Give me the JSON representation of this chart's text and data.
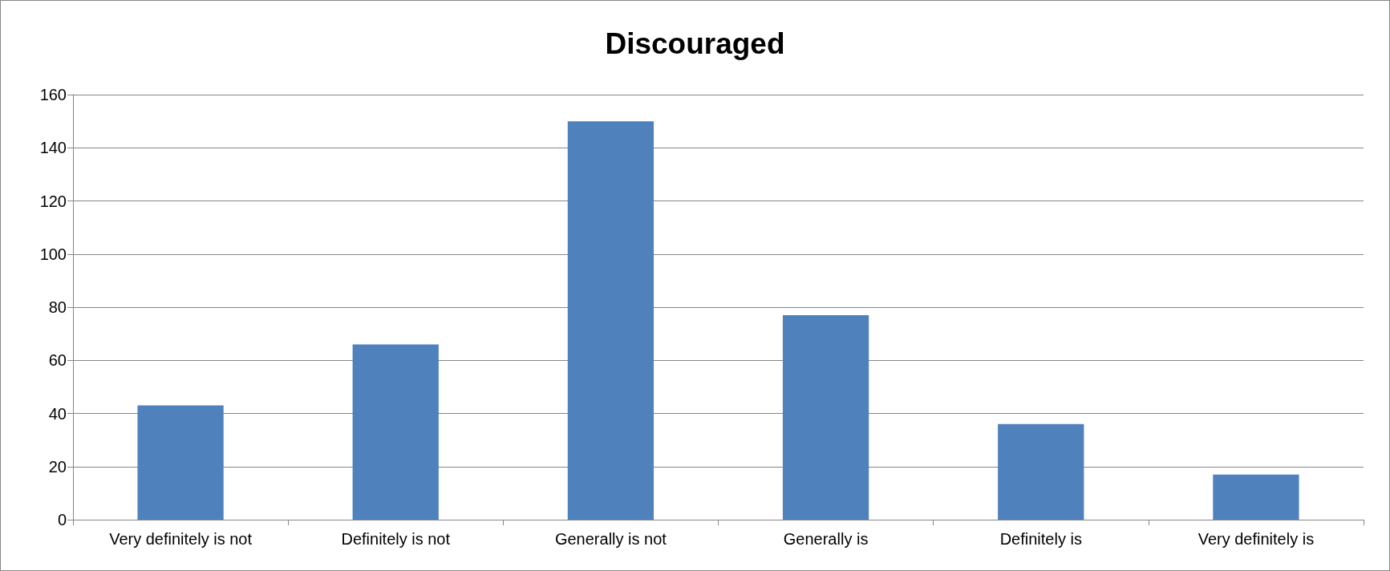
{
  "chart_data": {
    "type": "bar",
    "title": "Discouraged",
    "categories": [
      "Very definitely is not",
      "Definitely is not",
      "Generally is not",
      "Generally is",
      "Definitely is",
      "Very definitely is"
    ],
    "values": [
      43,
      66,
      150,
      77,
      36,
      17
    ],
    "color": "#4f81bd",
    "ylim": [
      0,
      160
    ],
    "yticks": [
      0,
      20,
      40,
      60,
      80,
      100,
      120,
      140,
      160
    ],
    "grid": "y"
  }
}
